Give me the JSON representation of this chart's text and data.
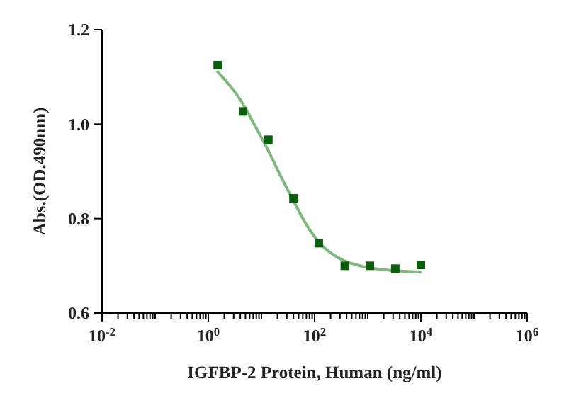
{
  "chart_data": {
    "type": "scatter",
    "xlabel": "IGFBP-2 Protein, Human (ng/ml)",
    "ylabel": "Abs.(OD.490nm)",
    "log": "x",
    "xlim": [
      0.01,
      1000000
    ],
    "ylim": [
      0.6,
      1.2
    ],
    "xticks": [
      {
        "value": 0.01,
        "label": "10$^{-2}$"
      },
      {
        "value": 0.02,
        "label": null
      },
      {
        "value": 0.03,
        "label": null
      },
      {
        "value": 0.04,
        "label": null
      },
      {
        "value": 0.05,
        "label": null
      },
      {
        "value": 0.06,
        "label": null
      },
      {
        "value": 0.07,
        "label": null
      },
      {
        "value": 0.08,
        "label": null
      },
      {
        "value": 0.09,
        "label": null
      },
      {
        "value": 0.1,
        "label": null
      },
      {
        "value": 0.2,
        "label": null
      },
      {
        "value": 0.3,
        "label": null
      },
      {
        "value": 0.4,
        "label": null
      },
      {
        "value": 0.5,
        "label": null
      },
      {
        "value": 0.6,
        "label": null
      },
      {
        "value": 0.7,
        "label": null
      },
      {
        "value": 0.8,
        "label": null
      },
      {
        "value": 0.9,
        "label": null
      },
      {
        "value": 1,
        "label": "10$^{0}$"
      },
      {
        "value": 2,
        "label": null
      },
      {
        "value": 3,
        "label": null
      },
      {
        "value": 4,
        "label": null
      },
      {
        "value": 5,
        "label": null
      },
      {
        "value": 6,
        "label": null
      },
      {
        "value": 7,
        "label": null
      },
      {
        "value": 8,
        "label": null
      },
      {
        "value": 9,
        "label": null
      },
      {
        "value": 10,
        "label": null
      },
      {
        "value": 20,
        "label": null
      },
      {
        "value": 30,
        "label": null
      },
      {
        "value": 40,
        "label": null
      },
      {
        "value": 50,
        "label": null
      },
      {
        "value": 60,
        "label": null
      },
      {
        "value": 70,
        "label": null
      },
      {
        "value": 80,
        "label": null
      },
      {
        "value": 90,
        "label": null
      },
      {
        "value": 100,
        "label": "10$^{2}$"
      },
      {
        "value": 200,
        "label": null
      },
      {
        "value": 300,
        "label": null
      },
      {
        "value": 400,
        "label": null
      },
      {
        "value": 500,
        "label": null
      },
      {
        "value": 600,
        "label": null
      },
      {
        "value": 700,
        "label": null
      },
      {
        "value": 800,
        "label": null
      },
      {
        "value": 900,
        "label": null
      },
      {
        "value": 1000,
        "label": null
      },
      {
        "value": 2000,
        "label": null
      },
      {
        "value": 3000,
        "label": null
      },
      {
        "value": 4000,
        "label": null
      },
      {
        "value": 5000,
        "label": null
      },
      {
        "value": 6000,
        "label": null
      },
      {
        "value": 7000,
        "label": null
      },
      {
        "value": 8000,
        "label": null
      },
      {
        "value": 9000,
        "label": null
      },
      {
        "value": 10000,
        "label": "10$^{4}$"
      },
      {
        "value": 20000,
        "label": null
      },
      {
        "value": 30000,
        "label": null
      },
      {
        "value": 40000,
        "label": null
      },
      {
        "value": 50000,
        "label": null
      },
      {
        "value": 60000,
        "label": null
      },
      {
        "value": 70000,
        "label": null
      },
      {
        "value": 80000,
        "label": null
      },
      {
        "value": 90000,
        "label": null
      },
      {
        "value": 100000,
        "label": null
      },
      {
        "value": 200000,
        "label": null
      },
      {
        "value": 300000,
        "label": null
      },
      {
        "value": 400000,
        "label": null
      },
      {
        "value": 500000,
        "label": null
      },
      {
        "value": 600000,
        "label": null
      },
      {
        "value": 700000,
        "label": null
      },
      {
        "value": 800000,
        "label": null
      },
      {
        "value": 900000,
        "label": null
      },
      {
        "value": 1000000,
        "label": "10$^{6}$"
      }
    ],
    "yticks": [
      {
        "value": 0.6,
        "label": "0.6"
      },
      {
        "value": 0.8,
        "label": "0.8"
      },
      {
        "value": 1,
        "label": "1.0"
      },
      {
        "value": 1.2,
        "label": "1.2"
      }
    ],
    "grid": false,
    "series": [
      {
        "color": "#0b5e0b",
        "marker": "square",
        "x": [
          1.5,
          4.5,
          13.5,
          40,
          120,
          370,
          1100,
          3300,
          10000
        ],
        "values": [
          1.125,
          1.027,
          0.967,
          0.843,
          0.748,
          0.7,
          0.7,
          0.694,
          0.702
        ]
      },
      {
        "type": "line",
        "color": "#7fb77e",
        "marker": "none",
        "line_style": "solid",
        "x": [
          1.5,
          4.1,
          7.7,
          14,
          23,
          39,
          72,
          133,
          300,
          850,
          2900,
          9800
        ],
        "values": [
          1.111,
          1.05,
          0.995,
          0.94,
          0.89,
          0.84,
          0.785,
          0.745,
          0.715,
          0.698,
          0.69,
          0.687
        ]
      }
    ]
  }
}
